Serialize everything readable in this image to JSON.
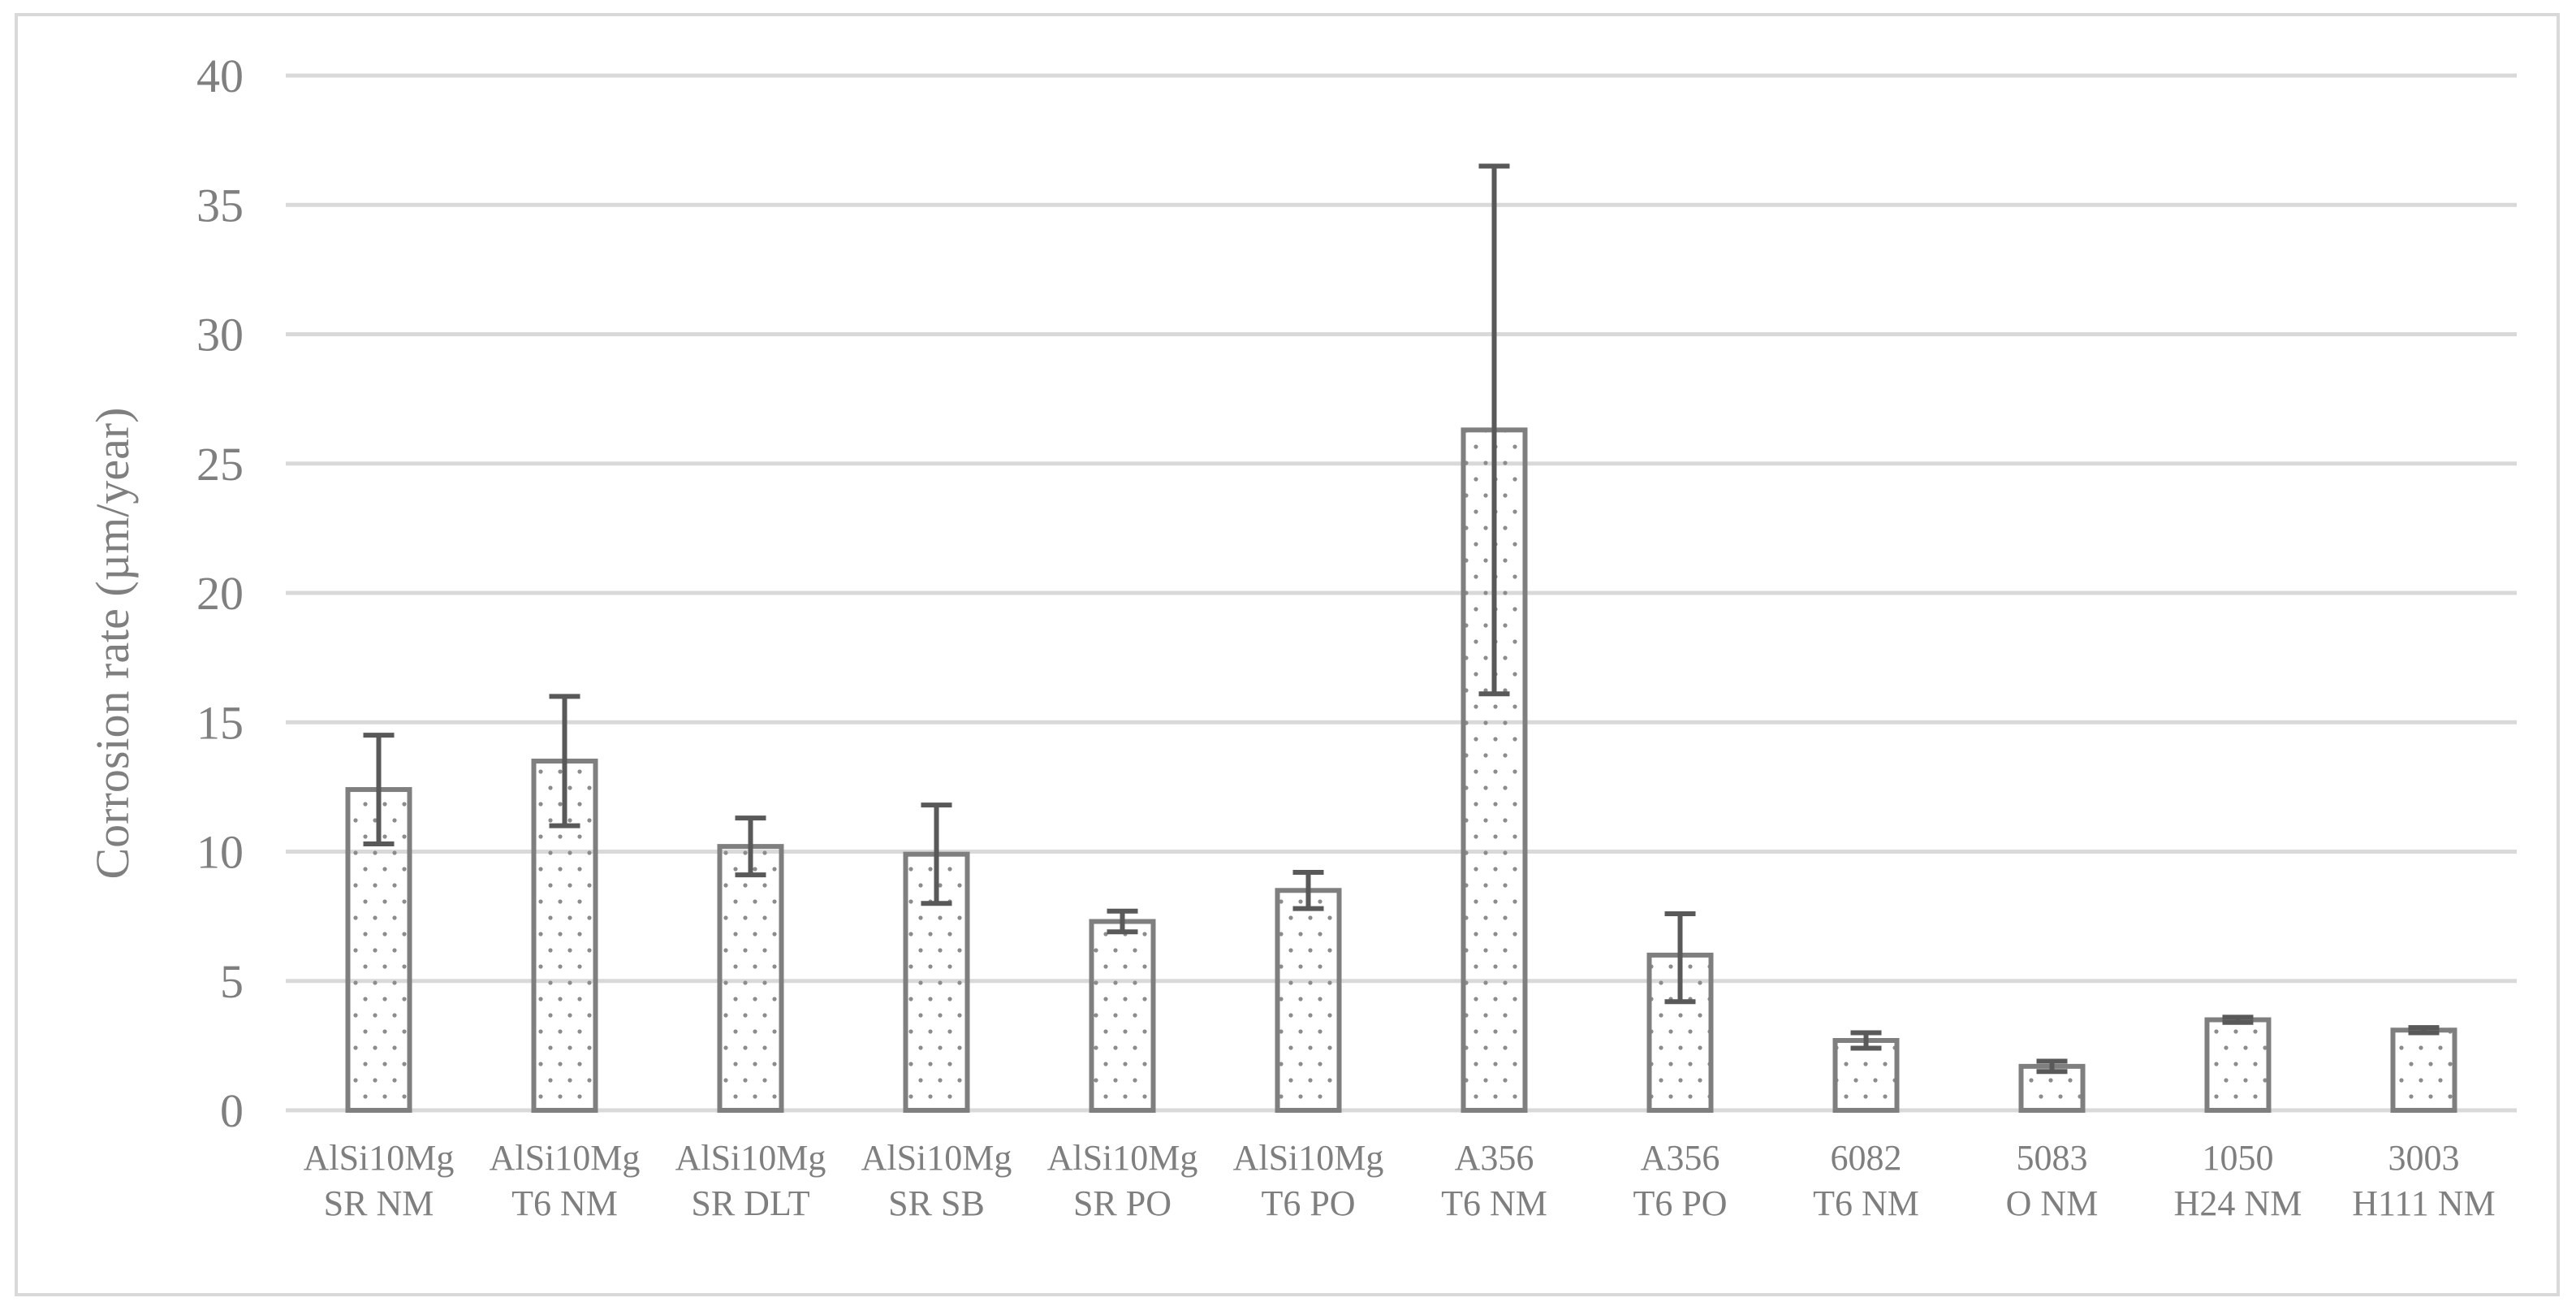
{
  "chart_data": {
    "type": "bar",
    "title": "",
    "xlabel": "",
    "ylabel": "Corrosion rate (µm/year)",
    "ylim": [
      0,
      40
    ],
    "yticks": [
      0,
      5,
      10,
      15,
      20,
      25,
      30,
      35,
      40
    ],
    "grid": true,
    "categories": [
      [
        "AlSi10Mg",
        "SR NM"
      ],
      [
        "AlSi10Mg",
        "T6 NM"
      ],
      [
        "AlSi10Mg",
        "SR DLT"
      ],
      [
        "AlSi10Mg",
        "SR SB"
      ],
      [
        "AlSi10Mg",
        "SR PO"
      ],
      [
        "AlSi10Mg",
        "T6 PO"
      ],
      [
        "A356",
        "T6 NM"
      ],
      [
        "A356",
        "T6 PO"
      ],
      [
        "6082",
        "T6 NM"
      ],
      [
        "5083",
        "O NM"
      ],
      [
        "1050",
        "H24 NM"
      ],
      [
        "3003",
        "H111 NM"
      ]
    ],
    "values": [
      12.4,
      13.5,
      10.2,
      9.9,
      7.3,
      8.5,
      26.3,
      6.0,
      2.7,
      1.7,
      3.5,
      3.1
    ],
    "error_low": [
      10.3,
      11.0,
      9.1,
      8.0,
      6.9,
      7.8,
      16.1,
      4.2,
      2.4,
      1.5,
      3.4,
      3.0
    ],
    "error_high": [
      14.5,
      16.0,
      11.3,
      11.8,
      7.7,
      9.2,
      36.5,
      7.6,
      3.0,
      1.9,
      3.6,
      3.2
    ]
  },
  "colors": {
    "bar_edge": "#7f7f7f",
    "bar_fill": "#ffffff",
    "dot": "#8c8c8c",
    "error_bar": "#595959",
    "grid": "#d9d9d9",
    "text": "#7f7f7f"
  }
}
